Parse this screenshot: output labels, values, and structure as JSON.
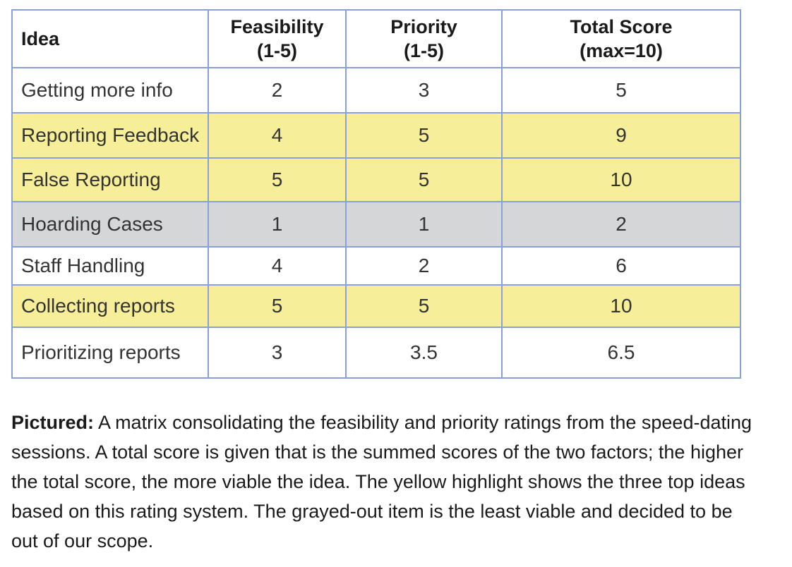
{
  "table": {
    "headers": {
      "idea": "Idea",
      "feasibility": [
        "Feasibility",
        "(1-5)"
      ],
      "priority": [
        "Priority",
        "(1-5)"
      ],
      "total": [
        "Total Score",
        "(max=10)"
      ]
    },
    "rows": [
      {
        "idea": "Getting more info",
        "feasibility": "2",
        "priority": "3",
        "total": "5",
        "highlight": "none"
      },
      {
        "idea": "Reporting Feedback",
        "feasibility": "4",
        "priority": "5",
        "total": "9",
        "highlight": "yellow"
      },
      {
        "idea": "False Reporting",
        "feasibility": "5",
        "priority": "5",
        "total": "10",
        "highlight": "yellow"
      },
      {
        "idea": "Hoarding Cases",
        "feasibility": "1",
        "priority": "1",
        "total": "2",
        "highlight": "gray"
      },
      {
        "idea": "Staff Handling",
        "feasibility": "4",
        "priority": "2",
        "total": "6",
        "highlight": "none"
      },
      {
        "idea": "Collecting reports",
        "feasibility": "5",
        "priority": "5",
        "total": "10",
        "highlight": "yellow"
      },
      {
        "idea": "Prioritizing reports",
        "feasibility": "3",
        "priority": "3.5",
        "total": "6.5",
        "highlight": "none"
      }
    ]
  },
  "colors": {
    "border": "#8aa0d8",
    "yellow": "#f6ee98",
    "gray": "#d5d6d8",
    "none": "#ffffff"
  },
  "caption": {
    "lead": "Pictured:",
    "text": " A matrix consolidating the feasibility and priority ratings from the speed-dating sessions. A total score is given that is the summed scores of the two factors; the higher the total score, the more viable the idea. The yellow highlight shows the three top ideas based on this rating system. The grayed-out item is the least viable and decided to be out of our scope."
  }
}
